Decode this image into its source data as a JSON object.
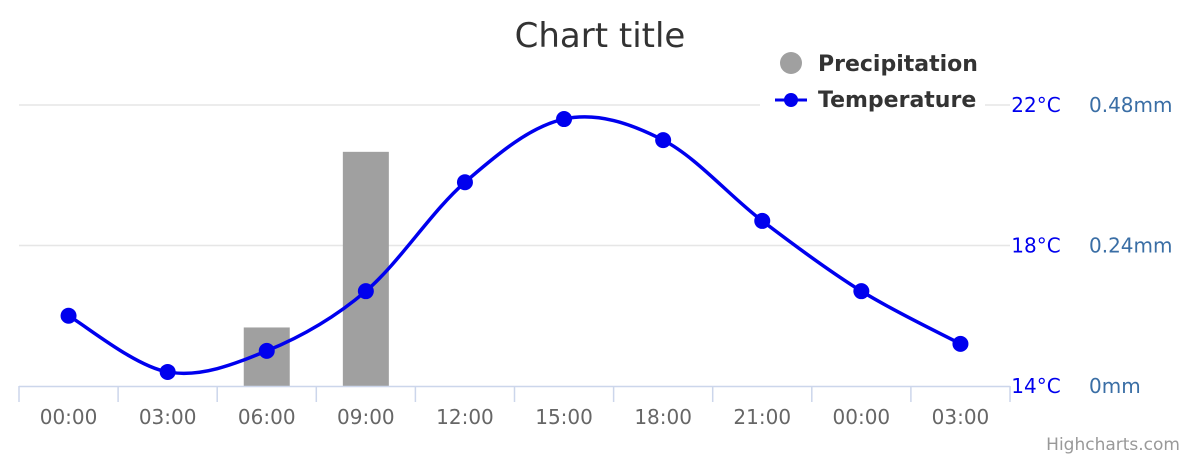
{
  "chart_data": {
    "type": "bar",
    "title": "Chart title",
    "categories": [
      "00:00",
      "03:00",
      "06:00",
      "09:00",
      "12:00",
      "15:00",
      "18:00",
      "21:00",
      "00:00",
      "03:00"
    ],
    "series": [
      {
        "name": "Precipitation",
        "type": "bar",
        "axis": "right",
        "color": "#a0a0a0",
        "values": [
          0,
          0,
          0.1,
          0.4,
          0,
          0,
          0,
          0,
          0,
          0
        ]
      },
      {
        "name": "Temperature",
        "type": "line",
        "axis": "left",
        "color": "#0000ee",
        "values": [
          16.0,
          14.4,
          15.0,
          16.7,
          19.8,
          21.6,
          21.0,
          18.7,
          16.7,
          15.2
        ]
      }
    ],
    "y_left": {
      "ticks": [
        "14°C",
        "18°C",
        "22°C"
      ],
      "tick_values": [
        14,
        18,
        22
      ],
      "range": [
        14,
        22
      ],
      "color": "#0000ee"
    },
    "y_right": {
      "ticks": [
        "0mm",
        "0.24mm",
        "0.48mm"
      ],
      "tick_values": [
        0,
        0.24,
        0.48
      ],
      "range": [
        0,
        0.48
      ],
      "color": "#3a6ea5"
    },
    "grid": true,
    "legend": {
      "position": "top-right",
      "items": [
        "Precipitation",
        "Temperature"
      ]
    },
    "credits": "Highcharts.com"
  }
}
